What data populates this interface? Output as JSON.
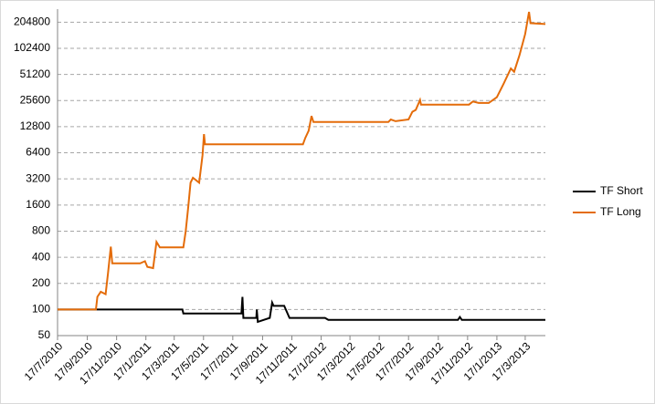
{
  "chart_data": {
    "type": "line",
    "log_base": 2,
    "grid": true,
    "legend": "right",
    "xlim": [
      "2010-07-17",
      "2013-04-28"
    ],
    "ylim": [
      50,
      290000
    ],
    "yticks": [
      50,
      100,
      200,
      400,
      800,
      1600,
      3200,
      6400,
      12800,
      25600,
      51200,
      102400,
      204800
    ],
    "xticks": [
      {
        "value": "2010-07-17",
        "label": "17/7/2010"
      },
      {
        "value": "2010-09-17",
        "label": "17/9/2010"
      },
      {
        "value": "2010-11-17",
        "label": "17/11/2010"
      },
      {
        "value": "2011-01-17",
        "label": "17/1/2011"
      },
      {
        "value": "2011-03-17",
        "label": "17/3/2011"
      },
      {
        "value": "2011-05-17",
        "label": "17/5/2011"
      },
      {
        "value": "2011-07-17",
        "label": "17/7/2011"
      },
      {
        "value": "2011-09-17",
        "label": "17/9/2011"
      },
      {
        "value": "2011-11-17",
        "label": "17/11/2011"
      },
      {
        "value": "2012-01-17",
        "label": "17/1/2012"
      },
      {
        "value": "2012-03-17",
        "label": "17/3/2012"
      },
      {
        "value": "2012-05-17",
        "label": "17/5/2012"
      },
      {
        "value": "2012-07-17",
        "label": "17/7/2012"
      },
      {
        "value": "2012-09-17",
        "label": "17/9/2012"
      },
      {
        "value": "2012-11-17",
        "label": "17/11/2012"
      },
      {
        "value": "2013-01-17",
        "label": "17/1/2013"
      },
      {
        "value": "2013-03-17",
        "label": "17/3/2013"
      }
    ],
    "series": [
      {
        "name": "TF Short",
        "color": "#000000",
        "x": [
          "2010-07-17",
          "2011-04-03",
          "2011-04-05",
          "2011-08-04",
          "2011-08-06",
          "2011-08-08",
          "2011-09-04",
          "2011-09-05",
          "2011-09-07",
          "2011-10-02",
          "2011-10-07",
          "2011-10-10",
          "2011-11-01",
          "2011-11-12",
          "2012-01-25",
          "2012-02-01",
          "2012-10-28",
          "2012-11-01",
          "2012-11-05",
          "2013-04-28"
        ],
        "values": [
          100,
          100,
          90,
          90,
          140,
          80,
          80,
          100,
          72,
          80,
          120,
          110,
          110,
          80,
          80,
          76,
          76,
          82,
          76,
          76
        ]
      },
      {
        "name": "TF Long",
        "color": "#e46c0a",
        "x": [
          "2010-07-17",
          "2010-10-05",
          "2010-10-08",
          "2010-10-15",
          "2010-10-25",
          "2010-10-30",
          "2010-11-05",
          "2010-11-08",
          "2011-01-05",
          "2011-01-15",
          "2011-01-20",
          "2011-02-01",
          "2011-02-08",
          "2011-02-15",
          "2011-04-05",
          "2011-04-10",
          "2011-04-15",
          "2011-04-20",
          "2011-04-25",
          "2011-05-08",
          "2011-05-15",
          "2011-05-18",
          "2011-05-20",
          "2011-12-10",
          "2011-12-15",
          "2011-12-22",
          "2011-12-28",
          "2012-01-01",
          "2012-06-05",
          "2012-06-10",
          "2012-06-20",
          "2012-07-17",
          "2012-07-25",
          "2012-08-01",
          "2012-08-10",
          "2012-08-12",
          "2012-11-20",
          "2012-11-28",
          "2012-12-10",
          "2012-12-31",
          "2013-01-17",
          "2013-01-31",
          "2013-02-15",
          "2013-02-22",
          "2013-03-05",
          "2013-03-17",
          "2013-03-25",
          "2013-03-28",
          "2013-04-28"
        ],
        "values": [
          100,
          100,
          140,
          160,
          150,
          260,
          530,
          340,
          340,
          360,
          310,
          300,
          600,
          520,
          520,
          800,
          1500,
          2900,
          3300,
          2900,
          6000,
          10500,
          8000,
          8000,
          9500,
          11500,
          17000,
          14500,
          14500,
          15500,
          14800,
          15500,
          19000,
          20000,
          26000,
          23000,
          23000,
          25000,
          24000,
          24000,
          28000,
          40000,
          60000,
          55000,
          85000,
          150000,
          270000,
          200000,
          195000
        ]
      }
    ]
  }
}
